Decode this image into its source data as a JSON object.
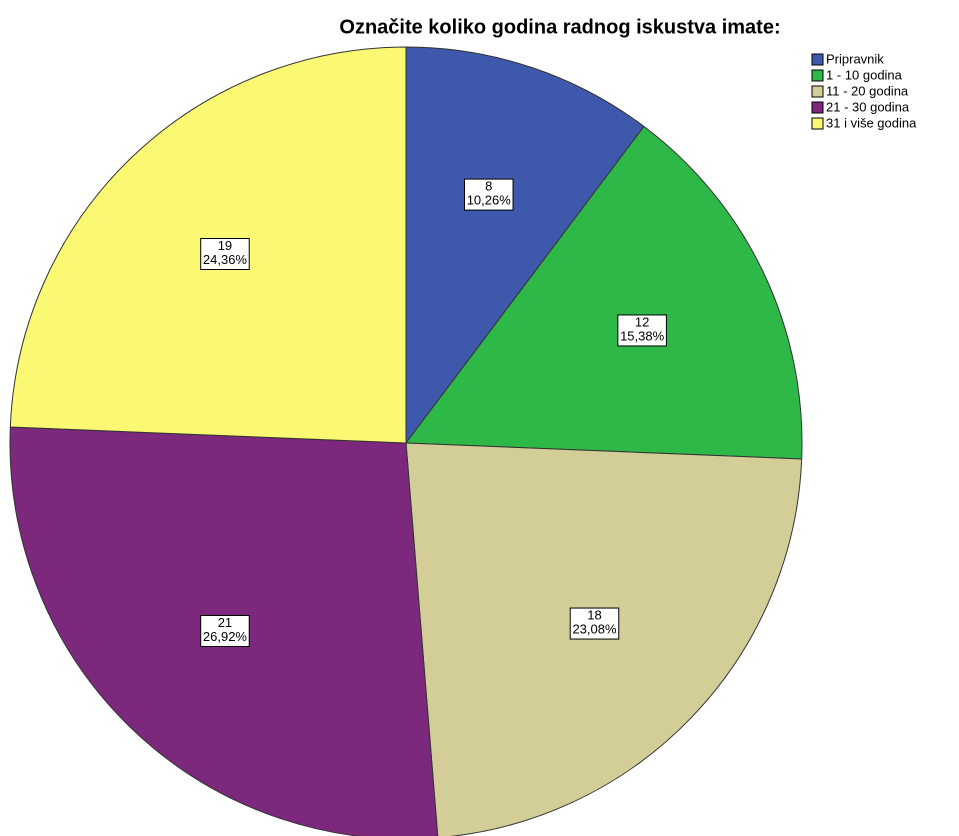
{
  "chart_data": {
    "type": "pie",
    "title": "Označite koliko godina radnog iskustva imate:",
    "categories": [
      "Pripravnik",
      "1 - 10 godina",
      "11 - 20 godina",
      "21 - 30 godina",
      "31 i više godina"
    ],
    "values": [
      8,
      12,
      18,
      21,
      19
    ],
    "percents": [
      10.26,
      15.38,
      23.08,
      26.92,
      24.36
    ],
    "percent_labels": [
      "10,26%",
      "15,38%",
      "23,08%",
      "26,92%",
      "24,36%"
    ],
    "colors": [
      "#3e58ac",
      "#2eb848",
      "#d3ce97",
      "#7b287d",
      "#fbf873"
    ],
    "legend": "upper right"
  }
}
